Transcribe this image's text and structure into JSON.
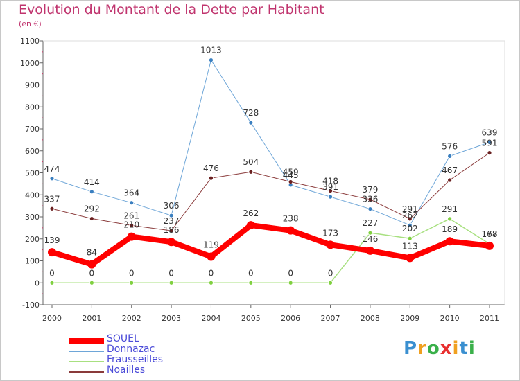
{
  "title": "Evolution du Montant de la Dette par Habitant",
  "subtitle": "(en €)",
  "logo": {
    "letters": [
      "P",
      "r",
      "o",
      "x",
      "i",
      "t",
      "i"
    ],
    "colors": [
      "#3a8fd0",
      "#f0a020",
      "#3ab04a",
      "#e83030",
      "#f0a020",
      "#3a8fd0",
      "#3ab04a"
    ]
  },
  "chart_data": {
    "type": "line",
    "x": [
      "2000",
      "2001",
      "2002",
      "2003",
      "2004",
      "2005",
      "2006",
      "2007",
      "2008",
      "2009",
      "2010",
      "2011"
    ],
    "ylim": [
      -100,
      1100
    ],
    "yticks": [
      -100,
      0,
      100,
      200,
      300,
      400,
      500,
      600,
      700,
      800,
      900,
      1000,
      1100
    ],
    "grid": false,
    "legend_position": "bottom-left",
    "series": [
      {
        "name": "SOUEL",
        "color": "#ff0000",
        "values": [
          139,
          84,
          210,
          186,
          119,
          262,
          238,
          173,
          146,
          113,
          189,
          168
        ],
        "labels": [
          "139",
          "84",
          "210",
          "186",
          "119",
          "262",
          "238",
          "173",
          "146",
          "113",
          "189",
          "168"
        ]
      },
      {
        "name": "Donnazac",
        "color": "#6ea6d8",
        "values": [
          474,
          414,
          364,
          306,
          1013,
          728,
          445,
          391,
          336,
          262,
          576,
          639
        ],
        "labels": [
          "474",
          "414",
          "364",
          "306",
          "1013",
          "728",
          "445",
          "391",
          "336",
          "262",
          "576",
          "639"
        ]
      },
      {
        "name": "Frausseilles",
        "color": "#a8e080",
        "values": [
          0,
          0,
          0,
          0,
          0,
          0,
          0,
          0,
          227,
          202,
          291,
          177
        ],
        "labels": [
          "0",
          "0",
          "0",
          "0",
          "0",
          "0",
          "0",
          "0",
          "227",
          "202",
          "291",
          "177"
        ]
      },
      {
        "name": "Noailles",
        "color": "#8a3a3a",
        "values": [
          337,
          292,
          261,
          237,
          476,
          504,
          459,
          418,
          379,
          291,
          467,
          591
        ],
        "labels": [
          "337",
          "292",
          "261",
          "237",
          "476",
          "504",
          "459",
          "418",
          "379",
          "291",
          "467",
          "591"
        ]
      }
    ]
  }
}
